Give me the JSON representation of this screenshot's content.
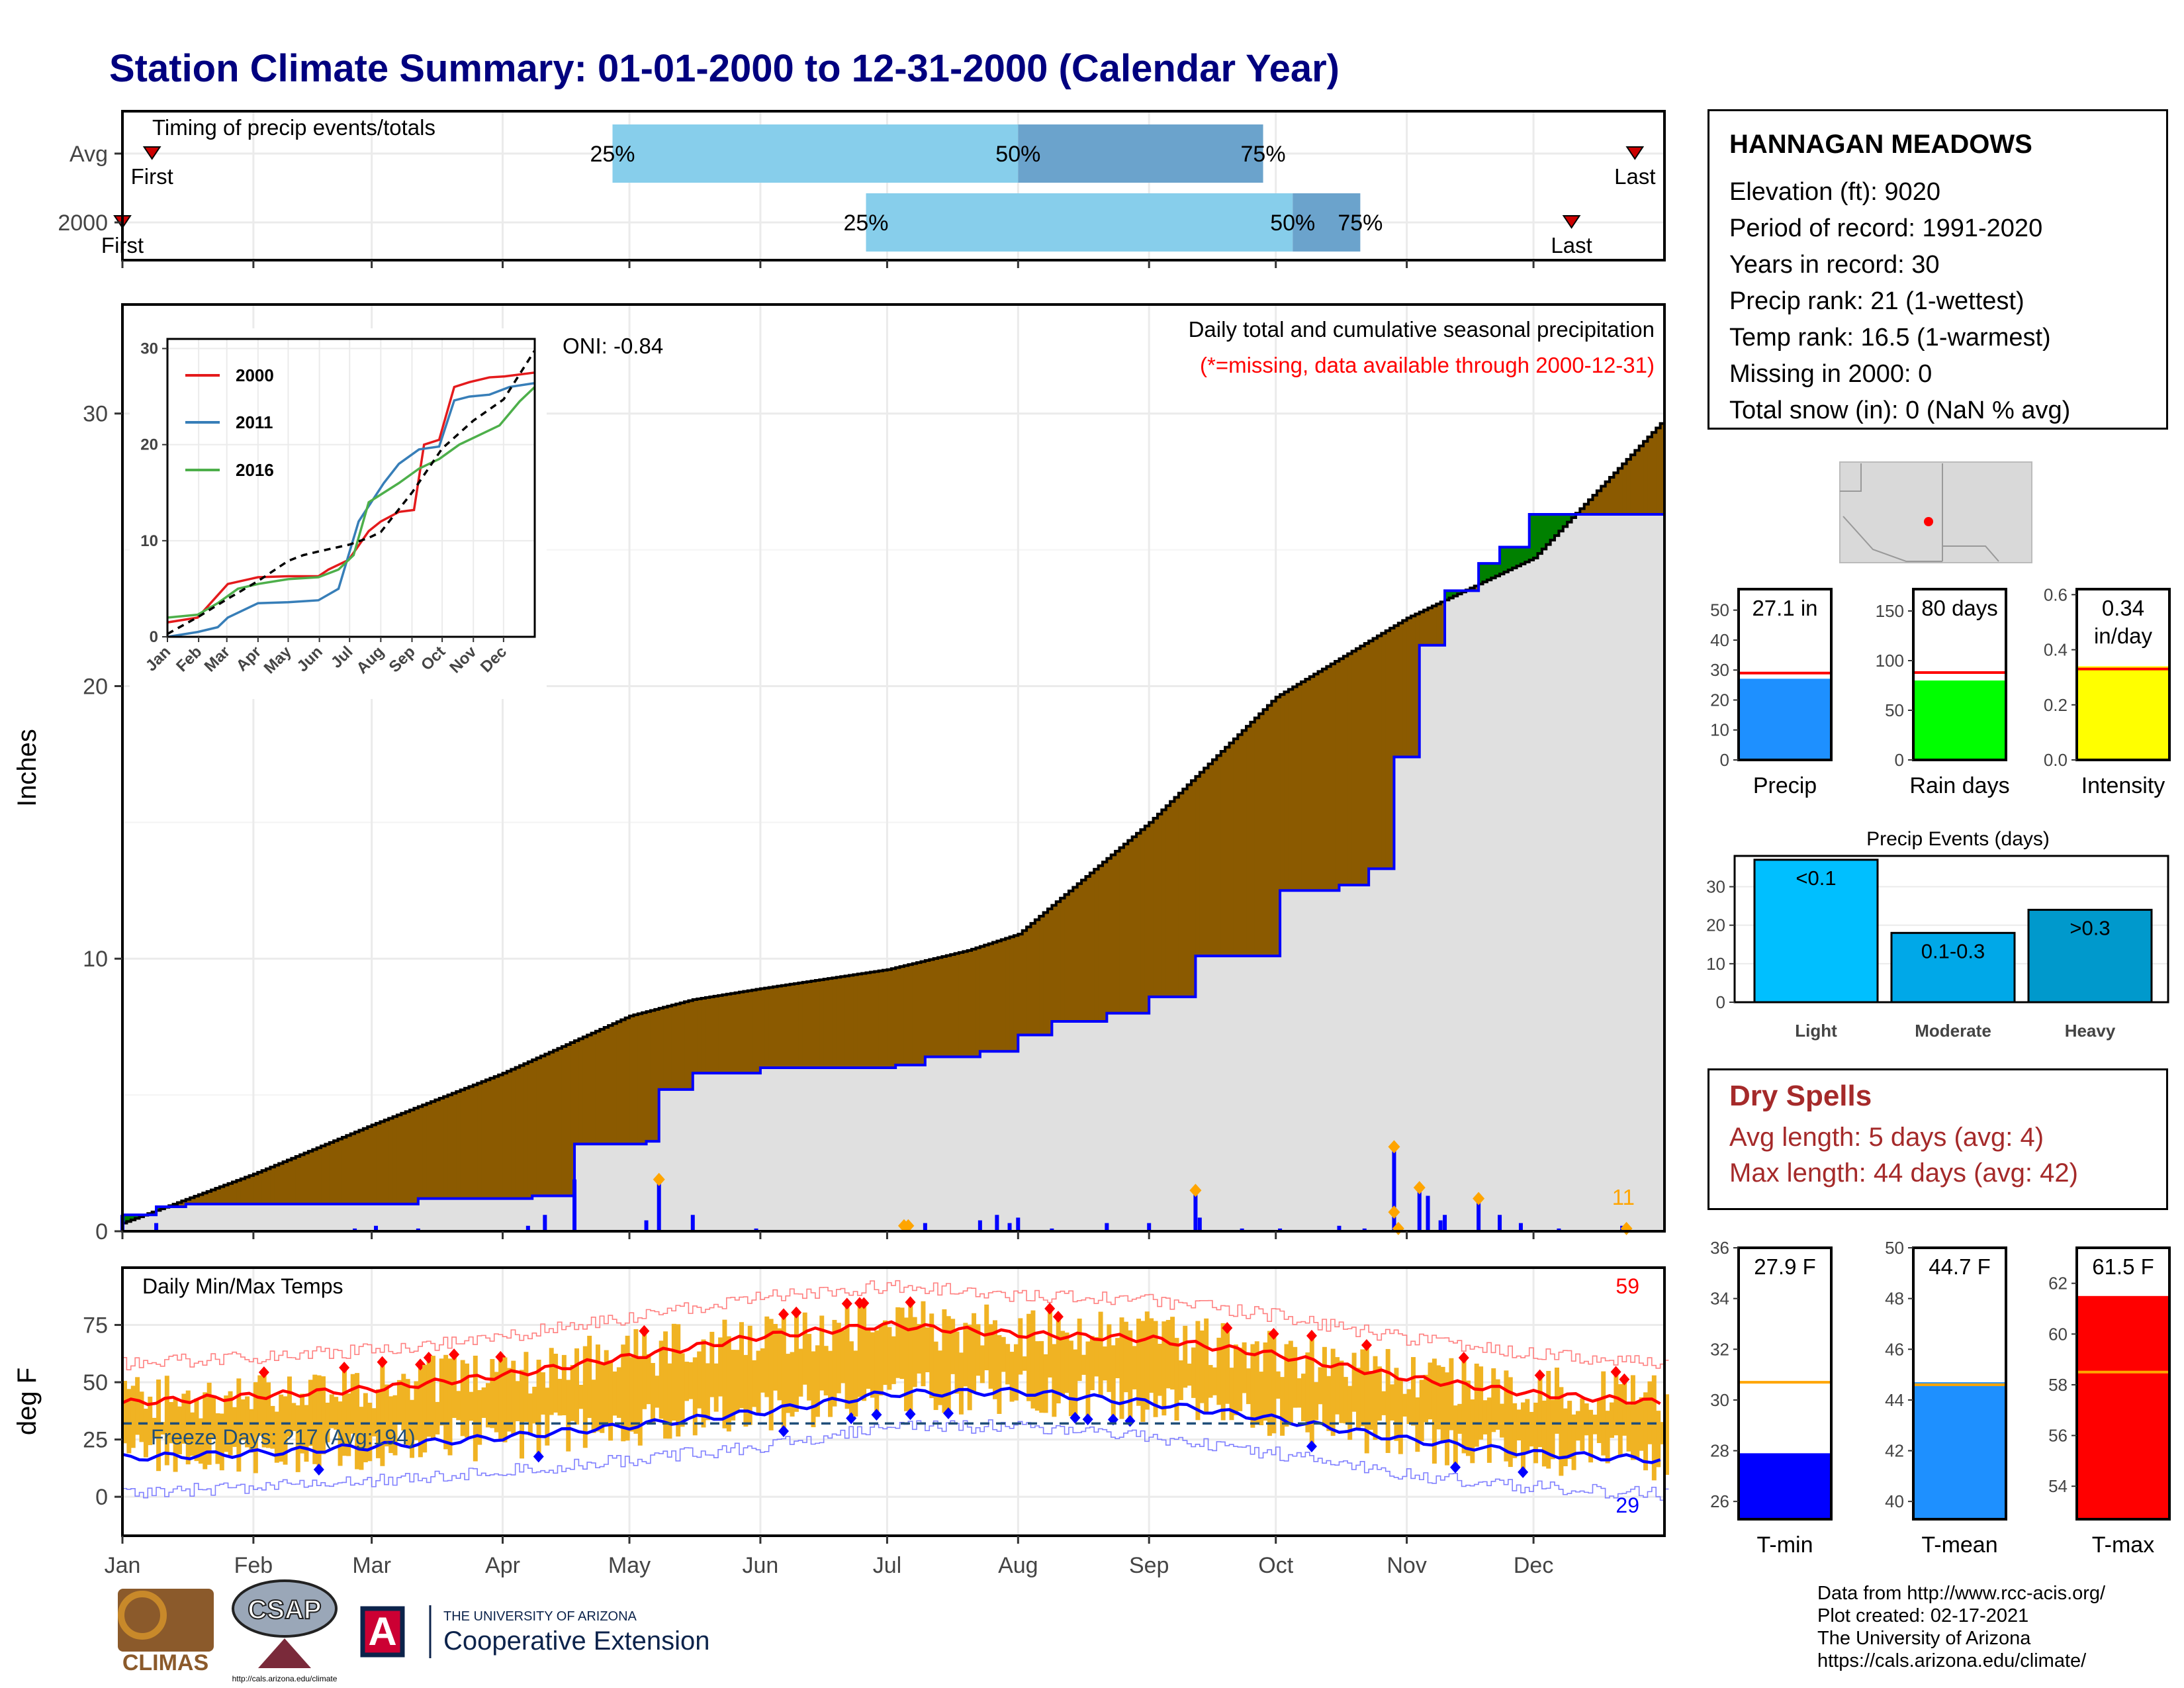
{
  "title": "Station Climate Summary: 01-01-2000 to 12-31-2000 (Calendar Year)",
  "station": {
    "name": "HANNAGAN MEADOWS",
    "lines": [
      "Elevation (ft): 9020",
      "Period of record: 1991-2020",
      "Years in record: 30",
      "Precip rank: 21 (1-wettest)",
      "Temp rank: 16.5 (1-warmest)",
      "Missing in 2000: 0",
      "Total snow (in): 0 (NaN % avg)"
    ]
  },
  "dry_spells": {
    "heading": "Dry Spells",
    "avg_length": "Avg length: 5 days (avg: 4)",
    "max_length": "Max length: 44 days (avg: 42)"
  },
  "footer": {
    "lines": [
      "Data from http://www.rcc-acis.org/",
      "Plot created: 02-17-2021",
      "The University of Arizona",
      "https://cals.arizona.edu/climate/"
    ]
  },
  "logos": {
    "climas": "CLIMAS",
    "csap": "CSAP",
    "csap_url": "http://cals.arizona.edu/climate",
    "ua_small": "THE UNIVERSITY OF ARIZONA",
    "ua_large": "Cooperative Extension"
  },
  "colors": {
    "brown": "#8b5a00",
    "grey_fill": "#e0e0e0",
    "green": "#008000",
    "blue": "#0000ff",
    "orange": "#ffa500",
    "temp_bar": "#f0b323",
    "red": "#ff0000",
    "light_blue": "#87ceeb",
    "mid_blue": "#6ba3cc"
  },
  "chart_data": [
    {
      "id": "timing",
      "type": "bar",
      "title": "Timing of precip events/totals",
      "rows": [
        {
          "label": "Avg",
          "p25": "25%",
          "p50": "50%",
          "p75": "75%",
          "first": "First",
          "last": "Last",
          "p25_doy": 116,
          "p50_doy": 212,
          "p75_doy": 270,
          "first_doy": 7,
          "last_doy": 358
        },
        {
          "label": "2000",
          "p25": "25%",
          "p50": "50%",
          "p75": "75%",
          "first": "First",
          "last": "Last",
          "p25_doy": 176,
          "p50_doy": 277,
          "p75_doy": 293,
          "first_doy": 0,
          "last_doy": 343
        }
      ],
      "xlim": [
        0,
        365
      ]
    },
    {
      "id": "precip",
      "type": "area",
      "ylabel": "Inches",
      "ylim": [
        0,
        34
      ],
      "yticks": [
        "0",
        "10",
        "20",
        "30"
      ],
      "xticks": [
        "Jan",
        "Feb",
        "Mar",
        "Apr",
        "May",
        "Jun",
        "Jul",
        "Aug",
        "Sep",
        "Oct",
        "Nov",
        "Dec"
      ],
      "annot_title": "Daily total and cumulative seasonal precipitation",
      "annot_missing": "(*=missing, data available through 2000-12-31)",
      "oni": "ONI: -0.84",
      "count": "11",
      "normal_cumulative": [
        [
          0,
          0.3
        ],
        [
          31,
          2.1
        ],
        [
          59,
          3.9
        ],
        [
          90,
          5.8
        ],
        [
          120,
          7.9
        ],
        [
          135,
          8.5
        ],
        [
          151,
          8.9
        ],
        [
          181,
          9.6
        ],
        [
          200,
          10.3
        ],
        [
          212,
          10.9
        ],
        [
          243,
          15.0
        ],
        [
          273,
          19.6
        ],
        [
          304,
          22.5
        ],
        [
          334,
          24.7
        ],
        [
          365,
          29.8
        ]
      ],
      "actual_cumulative": [
        [
          0,
          0.6
        ],
        [
          8,
          0.9
        ],
        [
          15,
          1.0
        ],
        [
          70,
          1.2
        ],
        [
          97,
          1.3
        ],
        [
          107,
          3.2
        ],
        [
          124,
          3.3
        ],
        [
          127,
          5.2
        ],
        [
          135,
          5.8
        ],
        [
          151,
          6.0
        ],
        [
          183,
          6.1
        ],
        [
          190,
          6.4
        ],
        [
          203,
          6.6
        ],
        [
          212,
          7.2
        ],
        [
          220,
          7.7
        ],
        [
          233,
          8.0
        ],
        [
          243,
          8.6
        ],
        [
          254,
          10.1
        ],
        [
          274,
          12.5
        ],
        [
          288,
          12.7
        ],
        [
          295,
          13.3
        ],
        [
          301,
          17.4
        ],
        [
          307,
          21.5
        ],
        [
          313,
          23.5
        ],
        [
          321,
          24.5
        ],
        [
          326,
          25.1
        ],
        [
          333,
          26.3
        ],
        [
          365,
          27.1
        ]
      ],
      "daily_bars": [
        [
          0,
          0.6
        ],
        [
          8,
          0.3
        ],
        [
          55,
          0.1
        ],
        [
          60,
          0.2
        ],
        [
          70,
          0.1
        ],
        [
          96,
          0.2
        ],
        [
          100,
          0.6
        ],
        [
          107,
          1.9
        ],
        [
          124,
          0.4
        ],
        [
          127,
          1.9
        ],
        [
          135,
          0.6
        ],
        [
          150,
          0.1
        ],
        [
          185,
          0.2
        ],
        [
          186,
          0.2
        ],
        [
          190,
          0.3
        ],
        [
          203,
          0.4
        ],
        [
          207,
          0.6
        ],
        [
          210,
          0.3
        ],
        [
          212,
          0.5
        ],
        [
          220,
          0.1
        ],
        [
          233,
          0.3
        ],
        [
          243,
          0.3
        ],
        [
          254,
          1.5
        ],
        [
          255,
          0.5
        ],
        [
          265,
          0.1
        ],
        [
          274,
          0.1
        ],
        [
          288,
          0.2
        ],
        [
          294,
          0.1
        ],
        [
          301,
          3.1
        ],
        [
          307,
          1.6
        ],
        [
          309,
          1.3
        ],
        [
          312,
          0.4
        ],
        [
          313,
          0.6
        ],
        [
          321,
          1.2
        ],
        [
          326,
          0.6
        ],
        [
          331,
          0.3
        ],
        [
          340,
          0.1
        ],
        [
          355,
          0.2
        ]
      ],
      "heavy_markers": [
        [
          127,
          1.9
        ],
        [
          254,
          1.5
        ],
        [
          301,
          3.1
        ],
        [
          307,
          1.6
        ],
        [
          321,
          1.2
        ],
        [
          185,
          0.2
        ],
        [
          186,
          0.2
        ],
        [
          301,
          0.7
        ],
        [
          302,
          0.1
        ],
        [
          356,
          0.1
        ]
      ]
    },
    {
      "id": "inset",
      "type": "line",
      "yticks": [
        "0",
        "10",
        "20",
        "30"
      ],
      "xticks": [
        "Jan",
        "Feb",
        "Mar",
        "Apr",
        "May",
        "Jun",
        "Jul",
        "Aug",
        "Sep",
        "Oct",
        "Nov",
        "Dec"
      ],
      "ylim": [
        0,
        31
      ],
      "series": [
        {
          "name": "2000",
          "color": "#e41a1c",
          "values": [
            [
              0,
              1.5
            ],
            [
              30,
              2
            ],
            [
              60,
              5.5
            ],
            [
              90,
              6.2
            ],
            [
              120,
              6.3
            ],
            [
              150,
              6.3
            ],
            [
              160,
              7
            ],
            [
              180,
              8
            ],
            [
              200,
              11
            ],
            [
              212,
              12
            ],
            [
              230,
              13
            ],
            [
              245,
              13.2
            ],
            [
              255,
              20
            ],
            [
              270,
              20.5
            ],
            [
              285,
              26
            ],
            [
              300,
              26.5
            ],
            [
              320,
              27
            ],
            [
              335,
              27.1
            ],
            [
              365,
              27.5
            ]
          ]
        },
        {
          "name": "2011",
          "color": "#377eb8",
          "values": [
            [
              0,
              0
            ],
            [
              30,
              0.5
            ],
            [
              50,
              1
            ],
            [
              60,
              2
            ],
            [
              90,
              3.5
            ],
            [
              120,
              3.6
            ],
            [
              150,
              3.8
            ],
            [
              170,
              5
            ],
            [
              190,
              12
            ],
            [
              215,
              16
            ],
            [
              230,
              18
            ],
            [
              250,
              19.5
            ],
            [
              270,
              19.8
            ],
            [
              285,
              24.6
            ],
            [
              300,
              25
            ],
            [
              320,
              25.2
            ],
            [
              340,
              26
            ],
            [
              365,
              26.4
            ]
          ]
        },
        {
          "name": "2016",
          "color": "#4daf4a",
          "values": [
            [
              0,
              2
            ],
            [
              30,
              2.3
            ],
            [
              50,
              3.5
            ],
            [
              70,
              5
            ],
            [
              90,
              5.5
            ],
            [
              120,
              6
            ],
            [
              150,
              6.2
            ],
            [
              170,
              7
            ],
            [
              185,
              8.5
            ],
            [
              200,
              14
            ],
            [
              215,
              15
            ],
            [
              230,
              16
            ],
            [
              250,
              17.5
            ],
            [
              270,
              18.5
            ],
            [
              290,
              20
            ],
            [
              310,
              21
            ],
            [
              330,
              22
            ],
            [
              350,
              24.5
            ],
            [
              365,
              26
            ]
          ]
        },
        {
          "name": "",
          "color": "#000000",
          "dashed": true,
          "values": [
            [
              0,
              0.3
            ],
            [
              31,
              2.1
            ],
            [
              59,
              3.9
            ],
            [
              90,
              5.8
            ],
            [
              120,
              7.9
            ],
            [
              135,
              8.5
            ],
            [
              151,
              8.9
            ],
            [
              181,
              9.6
            ],
            [
              200,
              10.3
            ],
            [
              212,
              10.9
            ],
            [
              243,
              15.0
            ],
            [
              273,
              19.6
            ],
            [
              304,
              22.5
            ],
            [
              334,
              24.7
            ],
            [
              365,
              29.8
            ]
          ]
        }
      ]
    },
    {
      "id": "temps",
      "type": "line",
      "title": "Daily Min/Max Temps",
      "ylabel": "deg F",
      "ylim": [
        -17,
        100
      ],
      "yticks": [
        "0",
        "25",
        "50",
        "75"
      ],
      "xticks": [
        "Jan",
        "Feb",
        "Mar",
        "Apr",
        "May",
        "Jun",
        "Jul",
        "Aug",
        "Sep",
        "Oct",
        "Nov",
        "Dec"
      ],
      "freeze_days": "Freeze Days: 217 (Avg:194)",
      "freeze_line": 32,
      "record_high_count": "59",
      "record_low_count": "29",
      "normal_max": [
        [
          0,
          41
        ],
        [
          31,
          44
        ],
        [
          59,
          47
        ],
        [
          90,
          53
        ],
        [
          120,
          61
        ],
        [
          151,
          70
        ],
        [
          181,
          75
        ],
        [
          212,
          71
        ],
        [
          243,
          69
        ],
        [
          273,
          62
        ],
        [
          304,
          52
        ],
        [
          334,
          45
        ],
        [
          365,
          41
        ]
      ],
      "normal_min": [
        [
          0,
          17
        ],
        [
          31,
          19
        ],
        [
          59,
          22
        ],
        [
          90,
          26
        ],
        [
          120,
          31
        ],
        [
          151,
          37
        ],
        [
          181,
          45
        ],
        [
          212,
          46
        ],
        [
          243,
          41
        ],
        [
          273,
          34
        ],
        [
          304,
          25
        ],
        [
          334,
          19
        ],
        [
          365,
          16
        ]
      ]
    },
    {
      "id": "summary_precip",
      "type": "bar",
      "categories": [
        "Precip"
      ],
      "values": [
        27.1
      ],
      "normal": 29,
      "label": "27.1 in",
      "ylim": [
        0,
        57
      ],
      "yticks": [
        "0",
        "10",
        "20",
        "30",
        "40",
        "50"
      ],
      "color": "#1e90ff"
    },
    {
      "id": "summary_raindays",
      "type": "bar",
      "categories": [
        "Rain days"
      ],
      "values": [
        80
      ],
      "normal": 88,
      "label": "80 days",
      "ylim": [
        0,
        172
      ],
      "yticks": [
        "0",
        "50",
        "100",
        "150"
      ],
      "color": "#00ff00"
    },
    {
      "id": "summary_intensity",
      "type": "bar",
      "categories": [
        "Intensity"
      ],
      "values": [
        0.34
      ],
      "normal": 0.33,
      "label": "0.34",
      "label2": "in/day",
      "ylim": [
        0,
        0.62
      ],
      "yticks": [
        "0.0",
        "0.2",
        "0.4",
        "0.6"
      ],
      "color": "#ffff00"
    },
    {
      "id": "events",
      "type": "bar",
      "title": "Precip Events (days)",
      "categories": [
        "Light",
        "Moderate",
        "Heavy"
      ],
      "values": [
        37,
        18,
        24
      ],
      "bar_labels": [
        "<0.1",
        "0.1-0.3",
        ">0.3"
      ],
      "ylim": [
        0,
        38
      ],
      "yticks": [
        "0",
        "10",
        "20",
        "30"
      ],
      "colors": [
        "#00bfff",
        "#00a8e8",
        "#0099cc"
      ]
    },
    {
      "id": "tmin",
      "type": "bar",
      "categories": [
        "T-min"
      ],
      "values": [
        27.9
      ],
      "normal": 30.7,
      "label": "27.9 F",
      "ylim": [
        25.3,
        36
      ],
      "yticks": [
        "26",
        "28",
        "30",
        "32",
        "34",
        "36"
      ],
      "color": "#0000ff"
    },
    {
      "id": "tmean",
      "type": "bar",
      "categories": [
        "T-mean"
      ],
      "values": [
        44.7
      ],
      "normal": 44.6,
      "label": "44.7 F",
      "ylim": [
        39.3,
        50
      ],
      "yticks": [
        "40",
        "42",
        "44",
        "46",
        "48",
        "50"
      ],
      "color": "#1e90ff"
    },
    {
      "id": "tmax",
      "type": "bar",
      "categories": [
        "T-max"
      ],
      "values": [
        61.5
      ],
      "normal": 58.5,
      "label": "61.5 F",
      "ylim": [
        52.7,
        63.4
      ],
      "yticks": [
        "54",
        "56",
        "58",
        "60",
        "62"
      ],
      "color": "#ff0000"
    }
  ]
}
